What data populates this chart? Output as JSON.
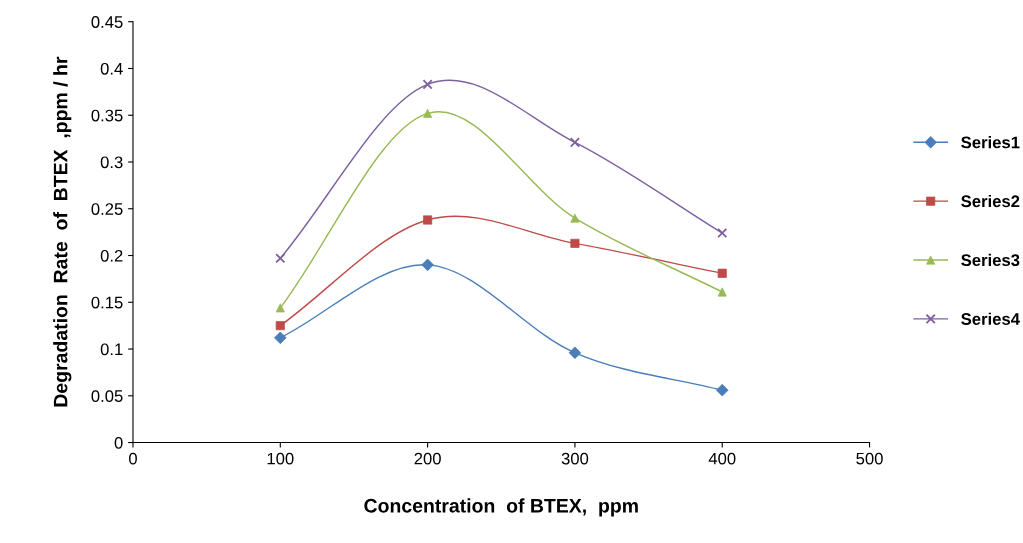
{
  "chart_data": {
    "type": "line",
    "xlabel": "Concentration  of BTEX,  ppm",
    "ylabel": "Degradation  Rate  of  BTEX  ,ppm / hr",
    "x": [
      100,
      200,
      300,
      400
    ],
    "series": [
      {
        "name": "Series1",
        "color": "#4a7ebb",
        "marker": "diamond",
        "values": [
          0.112,
          0.19,
          0.096,
          0.056
        ]
      },
      {
        "name": "Series2",
        "color": "#be4b48",
        "marker": "square",
        "values": [
          0.125,
          0.238,
          0.213,
          0.181
        ]
      },
      {
        "name": "Series3",
        "color": "#98b954",
        "marker": "triangle",
        "values": [
          0.144,
          0.352,
          0.24,
          0.161
        ]
      },
      {
        "name": "Series4",
        "color": "#7d60a0",
        "marker": "cross",
        "values": [
          0.197,
          0.383,
          0.321,
          0.224
        ]
      }
    ],
    "xlim": [
      0,
      500
    ],
    "xticks": [
      0,
      100,
      200,
      300,
      400,
      500
    ],
    "ylim": [
      0,
      0.45
    ],
    "yticks": [
      0,
      0.05,
      0.1,
      0.15,
      0.2,
      0.25,
      0.3,
      0.35,
      0.4,
      0.45
    ],
    "grid": false,
    "legend": "right",
    "line_style": "solid"
  }
}
